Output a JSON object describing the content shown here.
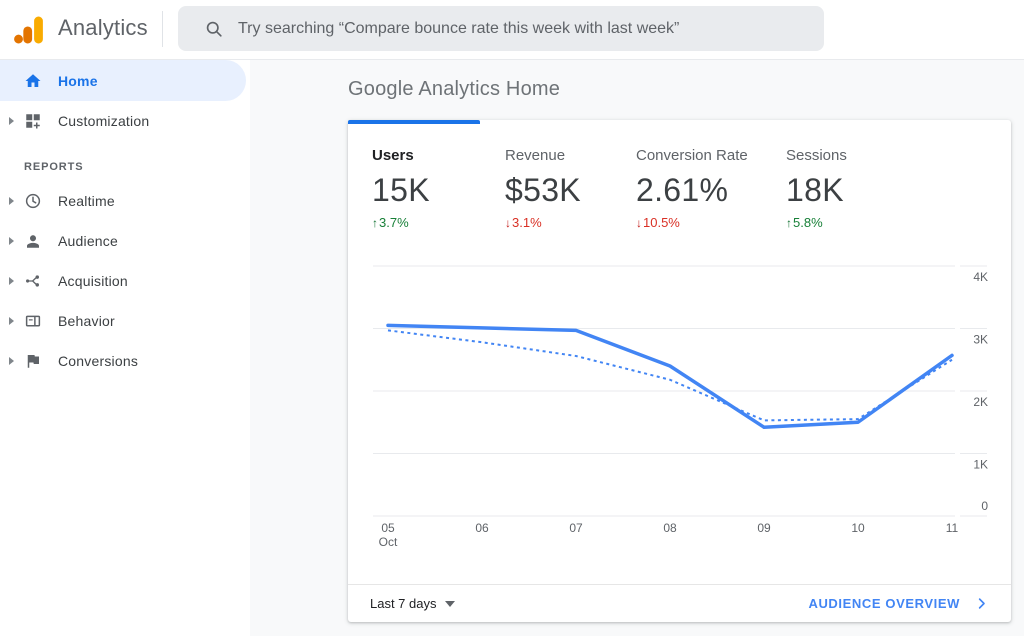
{
  "header": {
    "app_name": "Analytics",
    "search_placeholder": "Try searching “Compare bounce rate this week with last week”"
  },
  "sidebar": {
    "items": [
      {
        "label": "Home",
        "icon": "home-icon",
        "active": true
      },
      {
        "label": "Customization",
        "icon": "customization-icon",
        "expandable": true
      }
    ],
    "section_label": "REPORTS",
    "report_items": [
      {
        "label": "Realtime",
        "icon": "clock-icon"
      },
      {
        "label": "Audience",
        "icon": "person-icon"
      },
      {
        "label": "Acquisition",
        "icon": "branch-icon"
      },
      {
        "label": "Behavior",
        "icon": "page-icon"
      },
      {
        "label": "Conversions",
        "icon": "flag-icon"
      }
    ]
  },
  "main": {
    "page_title": "Google Analytics Home",
    "metrics": [
      {
        "label": "Users",
        "value": "15K",
        "arrow": "↑",
        "delta": "3.7%",
        "direction": "up",
        "selected": true
      },
      {
        "label": "Revenue",
        "value": "$53K",
        "arrow": "↓",
        "delta": "3.1%",
        "direction": "down",
        "selected": false
      },
      {
        "label": "Conversion Rate",
        "value": "2.61%",
        "arrow": "↓",
        "delta": "10.5%",
        "direction": "down",
        "selected": false
      },
      {
        "label": "Sessions",
        "value": "18K",
        "arrow": "↑",
        "delta": "5.8%",
        "direction": "up",
        "selected": false
      }
    ],
    "footer": {
      "date_range": "Last 7 days",
      "link_label": "AUDIENCE OVERVIEW"
    }
  },
  "chart_data": {
    "type": "line",
    "metric": "Users",
    "x_tick_labels": [
      "05",
      "06",
      "07",
      "08",
      "09",
      "10",
      "11"
    ],
    "x_first_tick_sublabel": "Oct",
    "series": [
      {
        "name": "current period",
        "style": "solid",
        "values": [
          3050,
          3010,
          2970,
          2400,
          1420,
          1500,
          2570
        ]
      },
      {
        "name": "previous period",
        "style": "dotted",
        "values": [
          2970,
          2780,
          2560,
          2180,
          1530,
          1550,
          2500
        ]
      }
    ],
    "ylim": [
      0,
      4000
    ],
    "y_ticks": [
      {
        "value": 4000,
        "label": "4K"
      },
      {
        "value": 3000,
        "label": "3K"
      },
      {
        "value": 2000,
        "label": "2K"
      },
      {
        "value": 1000,
        "label": "1K"
      },
      {
        "value": 0,
        "label": "0"
      }
    ],
    "grid": "horizontal",
    "legend": "none",
    "line_color": "#4285f4"
  },
  "colors": {
    "accent_blue": "#1a73e8",
    "chart_blue": "#4285f4",
    "positive_green": "#188038",
    "negative_red": "#c5221f",
    "active_item_bg": "#e8f0fe",
    "main_bg": "#f8f9fa"
  }
}
